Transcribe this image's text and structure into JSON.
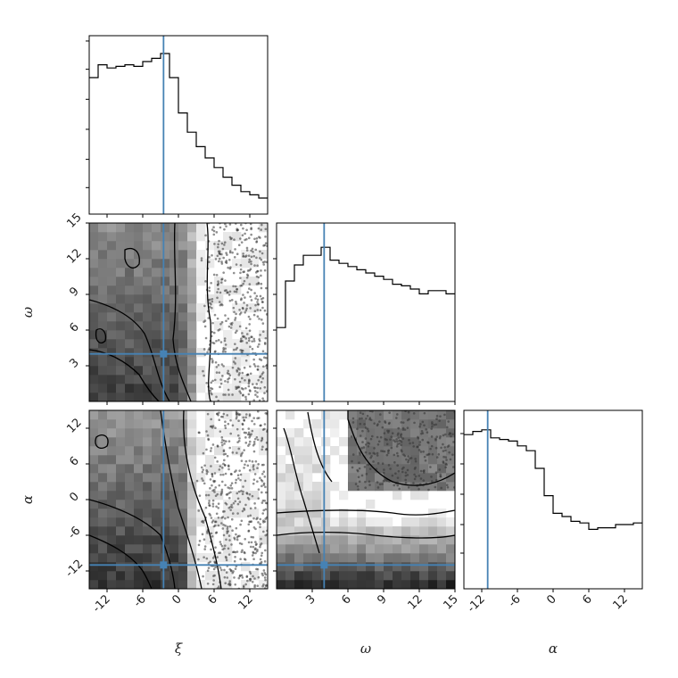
{
  "chart_data": {
    "type": "corner",
    "parameters": [
      "ξ",
      "ω",
      "α"
    ],
    "ranges": {
      "xi": [
        -15,
        15
      ],
      "omega": [
        0,
        15
      ],
      "alpha": [
        -15,
        15
      ]
    },
    "truths": {
      "xi": -2.5,
      "omega": 4.0,
      "alpha": -11.0
    },
    "truth_color": "#4682b4",
    "ticks": {
      "xi": [
        "-12",
        "-6",
        "0",
        "6",
        "12"
      ],
      "omega": [
        "3",
        "6",
        "9",
        "12",
        "15"
      ],
      "alpha": [
        "-12",
        "-6",
        "0",
        "6",
        "12"
      ]
    },
    "histograms": {
      "xi": {
        "edges_start": -15,
        "bin_width": 1.5,
        "counts": [
          0.85,
          0.93,
          0.91,
          0.92,
          0.93,
          0.92,
          0.95,
          0.97,
          1.0,
          0.85,
          0.63,
          0.51,
          0.42,
          0.35,
          0.29,
          0.23,
          0.18,
          0.14,
          0.12,
          0.1
        ]
      },
      "omega": {
        "edges_start": 0,
        "bin_width": 0.75,
        "counts": [
          0.46,
          0.75,
          0.85,
          0.91,
          0.91,
          0.96,
          0.88,
          0.86,
          0.84,
          0.82,
          0.8,
          0.78,
          0.76,
          0.73,
          0.72,
          0.7,
          0.67,
          0.69,
          0.69,
          0.67
        ]
      },
      "alpha": {
        "edges_start": -15,
        "bin_width": 1.5,
        "counts": [
          0.96,
          0.98,
          0.99,
          0.94,
          0.93,
          0.92,
          0.89,
          0.86,
          0.75,
          0.58,
          0.47,
          0.45,
          0.42,
          0.41,
          0.37,
          0.38,
          0.38,
          0.4,
          0.4,
          0.41
        ]
      }
    }
  }
}
